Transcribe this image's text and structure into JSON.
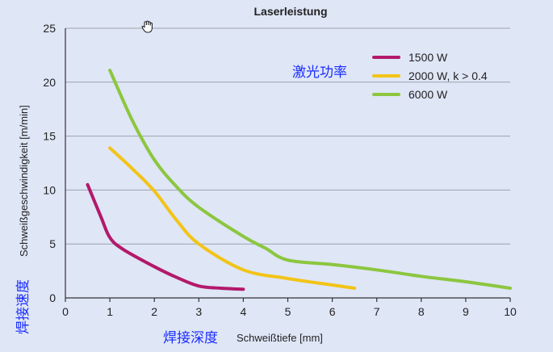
{
  "chart_data": {
    "type": "line",
    "title": "Laserleistung",
    "xlabel": "Schweißtiefe [mm]",
    "ylabel": "Schweißgeschwindigkeit [m/min]",
    "xlim": [
      0,
      10
    ],
    "ylim": [
      0,
      25
    ],
    "x_ticks": [
      "0",
      "1",
      "2",
      "3",
      "4",
      "5",
      "6",
      "7",
      "8",
      "9",
      "10"
    ],
    "y_ticks": [
      "0",
      "5",
      "10",
      "15",
      "20",
      "25"
    ],
    "grid": "horizontal",
    "legend_position": "top-right",
    "series": [
      {
        "name": "1500 W",
        "color": "#b3196b",
        "x": [
          0.5,
          0.8,
          1.0,
          1.3,
          2.0,
          2.5,
          3.0,
          3.5,
          4.0
        ],
        "y": [
          10.5,
          7.5,
          5.6,
          4.5,
          2.9,
          1.9,
          1.1,
          0.9,
          0.8
        ]
      },
      {
        "name": "2000 W, k > 0.4",
        "color": "#f2c418",
        "x": [
          1.0,
          1.5,
          2.0,
          2.5,
          3.0,
          4.0,
          5.0,
          6.0,
          6.5
        ],
        "y": [
          13.9,
          12.0,
          9.9,
          7.2,
          5.0,
          2.6,
          1.8,
          1.2,
          0.9
        ]
      },
      {
        "name": "6000 W",
        "color": "#8cc63f",
        "x": [
          1.0,
          1.5,
          2.0,
          2.5,
          3.0,
          4.0,
          4.5,
          5.0,
          6.0,
          7.0,
          8.0,
          9.0,
          10.0
        ],
        "y": [
          21.1,
          16.5,
          12.8,
          10.3,
          8.4,
          5.7,
          4.6,
          3.5,
          3.1,
          2.6,
          2.0,
          1.5,
          0.9
        ]
      }
    ]
  },
  "annotations": {
    "legend_cn": "激光功率",
    "ylabel_cn": "焊接速度",
    "xlabel_cn": "焊接深度"
  },
  "icons": {
    "cursor": "hand-cursor-icon"
  }
}
